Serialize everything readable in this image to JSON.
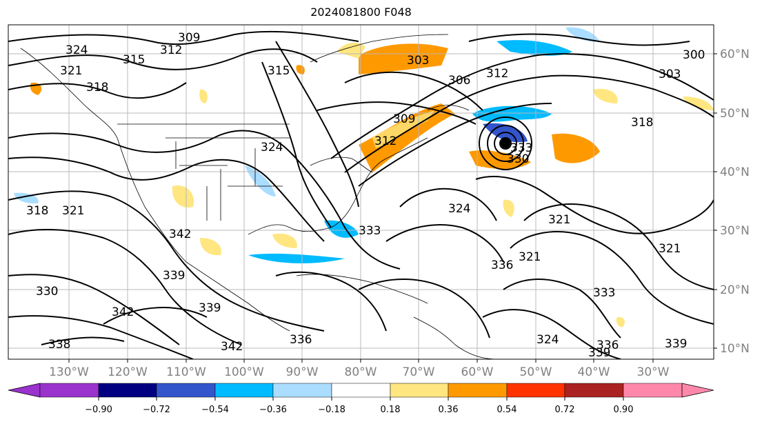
{
  "title": "2024081800 F048",
  "map": {
    "lon_labels": [
      "130°W",
      "120°W",
      "110°W",
      "100°W",
      "90°W",
      "80°W",
      "70°W",
      "60°W",
      "50°W",
      "40°W",
      "30°W"
    ],
    "lat_labels": [
      "60°N",
      "50°N",
      "40°N",
      "30°N",
      "20°N",
      "10°N"
    ],
    "contour_labels": [
      "324",
      "309",
      "312",
      "321",
      "315",
      "318",
      "315",
      "303",
      "306",
      "312",
      "300",
      "303",
      "318",
      "309",
      "312",
      "324",
      "333",
      "330",
      "336",
      "324",
      "321",
      "321",
      "321",
      "318",
      "333",
      "342",
      "339",
      "339",
      "342",
      "330",
      "336",
      "338",
      "333",
      "321",
      "324",
      "336",
      "339",
      "339",
      "342",
      "321"
    ]
  },
  "colorbar": {
    "ticks": [
      "−0.90",
      "−0.72",
      "−0.54",
      "−0.36",
      "−0.18",
      "0.18",
      "0.36",
      "0.54",
      "0.72",
      "0.90"
    ],
    "colors": [
      "#9933cc",
      "#000080",
      "#3355cc",
      "#00bbff",
      "#aaddff",
      "#ffffff",
      "#ffe680",
      "#ff9900",
      "#ff3300",
      "#aa2222",
      "#ff88aa"
    ]
  }
}
